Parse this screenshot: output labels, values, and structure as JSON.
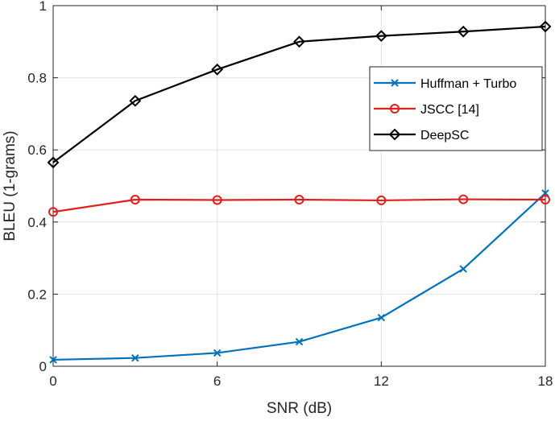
{
  "chart_data": {
    "type": "line",
    "xlabel": "SNR (dB)",
    "ylabel": "BLEU (1-grams)",
    "xlim": [
      0,
      18
    ],
    "ylim": [
      0,
      1
    ],
    "xticks": [
      0,
      6,
      12,
      18
    ],
    "yticks": [
      0,
      0.2,
      0.4,
      0.6,
      0.8,
      1
    ],
    "xtick_labels": [
      "0",
      "6",
      "12",
      "18"
    ],
    "ytick_labels": [
      "0",
      "0.2",
      "0.4",
      "0.6",
      "0.8",
      "1"
    ],
    "grid": true,
    "legend_position": "upper-right",
    "x": [
      0,
      3,
      6,
      9,
      12,
      15,
      18
    ],
    "series": [
      {
        "name": "Huffman + Turbo",
        "color": "#0072BD",
        "marker": "x",
        "values": [
          0.018,
          0.023,
          0.037,
          0.068,
          0.135,
          0.27,
          0.48
        ]
      },
      {
        "name": "JSCC [14]",
        "color": "#E0201B",
        "marker": "circle",
        "values": [
          0.428,
          0.462,
          0.461,
          0.462,
          0.46,
          0.463,
          0.462
        ]
      },
      {
        "name": "DeepSC",
        "color": "#000000",
        "marker": "diamond",
        "values": [
          0.565,
          0.736,
          0.823,
          0.9,
          0.916,
          0.928,
          0.942
        ]
      }
    ]
  }
}
